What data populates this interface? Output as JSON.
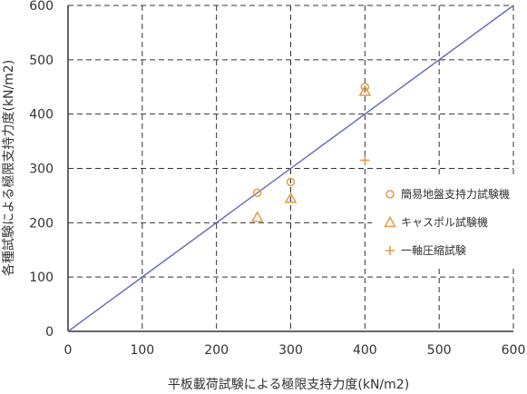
{
  "chart_data": {
    "type": "scatter",
    "xlabel": "平板載荷試験による極限支持力度(kN/m2)",
    "ylabel": "各種試験による極限支持力度(kN/m2)",
    "xlim": [
      0,
      600
    ],
    "ylim": [
      0,
      600
    ],
    "x_ticks": [
      "0",
      "100",
      "200",
      "300",
      "400",
      "500",
      "600"
    ],
    "y_ticks": [
      "0",
      "100",
      "200",
      "300",
      "400",
      "500",
      "600"
    ],
    "grid": true,
    "grid_style": "dashed",
    "legend_position": "right",
    "reference_line": {
      "from": [
        0,
        0
      ],
      "to": [
        600,
        600
      ],
      "color": "#6a70b8"
    },
    "series": [
      {
        "name": "簡易地盤支持力試験機",
        "marker": "circle",
        "color": "#e0a050",
        "points": [
          [
            255,
            255
          ],
          [
            300,
            275
          ],
          [
            400,
            450
          ]
        ]
      },
      {
        "name": "キャスポル試験機",
        "marker": "triangle",
        "color": "#e0a050",
        "points": [
          [
            255,
            210
          ],
          [
            300,
            245
          ],
          [
            400,
            442
          ]
        ]
      },
      {
        "name": "一軸圧縮試験",
        "marker": "plus",
        "color": "#e0a050",
        "points": [
          [
            400,
            315
          ]
        ]
      }
    ]
  }
}
